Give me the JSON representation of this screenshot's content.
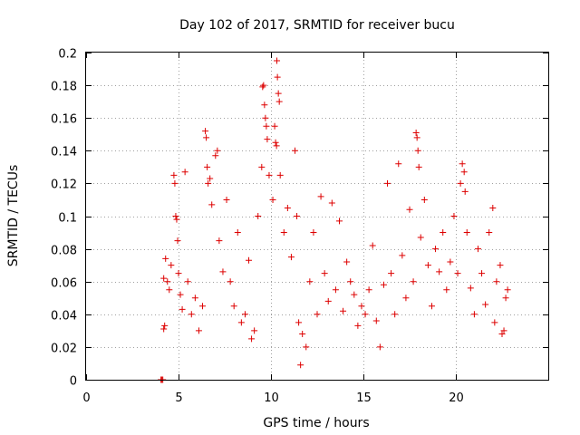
{
  "chart_data": {
    "type": "scatter",
    "title": "Day 102 of 2017, SRMTID for receiver bucu",
    "xlabel": "GPS time / hours",
    "ylabel": "SRMTID / TECUs",
    "xlim": [
      0,
      25
    ],
    "ylim": [
      0,
      0.2
    ],
    "x_ticks": [
      0,
      5,
      10,
      15,
      20
    ],
    "x_tick_labels": [
      "0",
      "5",
      "10",
      "15",
      "20"
    ],
    "y_ticks": [
      0,
      0.02,
      0.04,
      0.06,
      0.08,
      0.1,
      0.12,
      0.14,
      0.16,
      0.18,
      0.2
    ],
    "y_tick_labels": [
      "0",
      "0.02",
      "0.04",
      "0.06",
      "0.08",
      "0.1",
      "0.12",
      "0.14",
      "0.16",
      "0.18",
      "0.2"
    ],
    "grid": true,
    "marker": "+",
    "color": "#dd0000",
    "series": [
      {
        "name": "SRMTID",
        "points": [
          [
            4.05,
            0.0
          ],
          [
            4.1,
            0.0
          ],
          [
            4.15,
            0.0
          ],
          [
            4.2,
            0.031
          ],
          [
            4.25,
            0.033
          ],
          [
            4.2,
            0.062
          ],
          [
            4.3,
            0.074
          ],
          [
            4.4,
            0.06
          ],
          [
            4.5,
            0.055
          ],
          [
            4.6,
            0.07
          ],
          [
            4.75,
            0.125
          ],
          [
            4.8,
            0.12
          ],
          [
            4.85,
            0.1
          ],
          [
            4.9,
            0.098
          ],
          [
            4.95,
            0.085
          ],
          [
            5.0,
            0.065
          ],
          [
            5.1,
            0.052
          ],
          [
            5.2,
            0.043
          ],
          [
            5.35,
            0.127
          ],
          [
            5.5,
            0.06
          ],
          [
            5.7,
            0.04
          ],
          [
            5.9,
            0.05
          ],
          [
            6.1,
            0.03
          ],
          [
            6.3,
            0.045
          ],
          [
            6.45,
            0.152
          ],
          [
            6.5,
            0.148
          ],
          [
            6.55,
            0.13
          ],
          [
            6.6,
            0.12
          ],
          [
            6.7,
            0.123
          ],
          [
            6.8,
            0.107
          ],
          [
            7.0,
            0.137
          ],
          [
            7.1,
            0.14
          ],
          [
            7.2,
            0.085
          ],
          [
            7.4,
            0.066
          ],
          [
            7.6,
            0.11
          ],
          [
            7.8,
            0.06
          ],
          [
            8.0,
            0.045
          ],
          [
            8.2,
            0.09
          ],
          [
            8.4,
            0.035
          ],
          [
            8.6,
            0.04
          ],
          [
            8.8,
            0.073
          ],
          [
            8.95,
            0.025
          ],
          [
            9.1,
            0.03
          ],
          [
            9.3,
            0.1
          ],
          [
            9.5,
            0.13
          ],
          [
            9.55,
            0.179
          ],
          [
            9.6,
            0.18
          ],
          [
            9.65,
            0.168
          ],
          [
            9.7,
            0.16
          ],
          [
            9.75,
            0.155
          ],
          [
            9.8,
            0.147
          ],
          [
            9.9,
            0.125
          ],
          [
            10.1,
            0.11
          ],
          [
            10.2,
            0.155
          ],
          [
            10.25,
            0.145
          ],
          [
            10.3,
            0.143
          ],
          [
            10.32,
            0.195
          ],
          [
            10.35,
            0.185
          ],
          [
            10.4,
            0.175
          ],
          [
            10.45,
            0.17
          ],
          [
            10.5,
            0.125
          ],
          [
            10.7,
            0.09
          ],
          [
            10.9,
            0.105
          ],
          [
            11.1,
            0.075
          ],
          [
            11.3,
            0.14
          ],
          [
            11.4,
            0.1
          ],
          [
            11.5,
            0.035
          ],
          [
            11.6,
            0.009
          ],
          [
            11.7,
            0.028
          ],
          [
            11.9,
            0.02
          ],
          [
            12.1,
            0.06
          ],
          [
            12.3,
            0.09
          ],
          [
            12.5,
            0.04
          ],
          [
            12.7,
            0.112
          ],
          [
            12.9,
            0.065
          ],
          [
            13.1,
            0.048
          ],
          [
            13.3,
            0.108
          ],
          [
            13.5,
            0.055
          ],
          [
            13.7,
            0.097
          ],
          [
            13.9,
            0.042
          ],
          [
            14.1,
            0.072
          ],
          [
            14.3,
            0.06
          ],
          [
            14.5,
            0.052
          ],
          [
            14.7,
            0.033
          ],
          [
            14.9,
            0.045
          ],
          [
            15.1,
            0.04
          ],
          [
            15.3,
            0.055
          ],
          [
            15.5,
            0.082
          ],
          [
            15.7,
            0.036
          ],
          [
            15.9,
            0.02
          ],
          [
            16.1,
            0.058
          ],
          [
            16.3,
            0.12
          ],
          [
            16.5,
            0.065
          ],
          [
            16.7,
            0.04
          ],
          [
            16.9,
            0.132
          ],
          [
            17.1,
            0.076
          ],
          [
            17.3,
            0.05
          ],
          [
            17.5,
            0.104
          ],
          [
            17.7,
            0.06
          ],
          [
            17.85,
            0.151
          ],
          [
            17.9,
            0.148
          ],
          [
            17.95,
            0.14
          ],
          [
            18.0,
            0.13
          ],
          [
            18.1,
            0.087
          ],
          [
            18.3,
            0.11
          ],
          [
            18.5,
            0.07
          ],
          [
            18.7,
            0.045
          ],
          [
            18.9,
            0.08
          ],
          [
            19.1,
            0.066
          ],
          [
            19.3,
            0.09
          ],
          [
            19.5,
            0.055
          ],
          [
            19.7,
            0.072
          ],
          [
            19.9,
            0.1
          ],
          [
            20.1,
            0.065
          ],
          [
            20.25,
            0.12
          ],
          [
            20.35,
            0.132
          ],
          [
            20.45,
            0.127
          ],
          [
            20.5,
            0.115
          ],
          [
            20.6,
            0.09
          ],
          [
            20.8,
            0.056
          ],
          [
            21.0,
            0.04
          ],
          [
            21.2,
            0.08
          ],
          [
            21.4,
            0.065
          ],
          [
            21.6,
            0.046
          ],
          [
            21.8,
            0.09
          ],
          [
            22.0,
            0.105
          ],
          [
            22.1,
            0.035
          ],
          [
            22.2,
            0.06
          ],
          [
            22.4,
            0.07
          ],
          [
            22.5,
            0.028
          ],
          [
            22.6,
            0.03
          ],
          [
            22.7,
            0.05
          ],
          [
            22.8,
            0.055
          ]
        ]
      }
    ]
  }
}
